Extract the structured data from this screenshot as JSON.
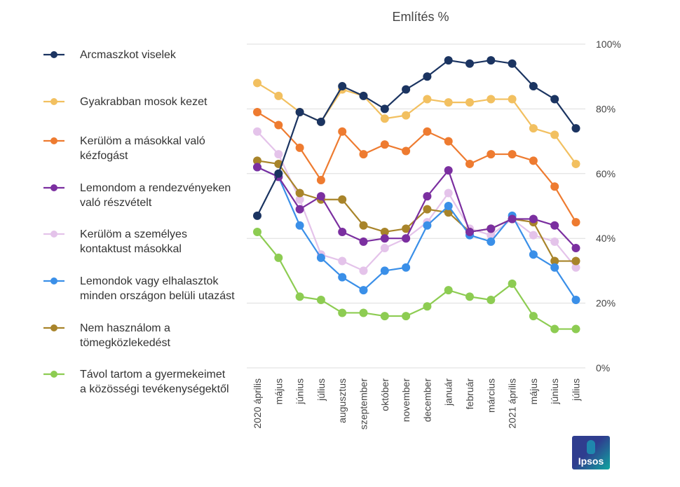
{
  "chart_data": {
    "type": "line",
    "title": "Említés %",
    "categories": [
      "2020 április",
      "május",
      "június",
      "július",
      "augusztus",
      "szeptember",
      "október",
      "november",
      "december",
      "január",
      "február",
      "március",
      "2021 április",
      "május",
      "június",
      "július"
    ],
    "ylim": [
      0,
      100
    ],
    "yticks": [
      "0%",
      "20%",
      "40%",
      "60%",
      "80%",
      "100%"
    ],
    "yaxis_position": "right",
    "grid": true,
    "legend_position": "left",
    "series": [
      {
        "name": "Arcmaszkot viselek",
        "name_lines": [
          "Arcmaszkot viselek"
        ],
        "color": "#1b3461",
        "values": [
          47,
          60,
          79,
          76,
          87,
          84,
          80,
          86,
          90,
          95,
          94,
          95,
          94,
          87,
          83,
          74
        ]
      },
      {
        "name": "Gyakrabban mosok kezet",
        "name_lines": [
          "Gyakrabban mosok kezet"
        ],
        "color": "#f2c060",
        "values": [
          88,
          84,
          79,
          76,
          86,
          84,
          77,
          78,
          83,
          82,
          82,
          83,
          83,
          74,
          72,
          63
        ]
      },
      {
        "name": "Kerülöm a másokkal való kézfogást",
        "name_lines": [
          "Kerülöm a másokkal való",
          "kézfogást"
        ],
        "color": "#ee7b30",
        "values": [
          79,
          75,
          68,
          58,
          73,
          66,
          69,
          67,
          73,
          70,
          63,
          66,
          66,
          64,
          56,
          45
        ]
      },
      {
        "name": "Lemondom a rendezvényeken való részvételt",
        "name_lines": [
          "Lemondom a rendezvényeken",
          "való részvételt"
        ],
        "color": "#7b2fa0",
        "values": [
          62,
          59,
          49,
          53,
          42,
          39,
          40,
          40,
          53,
          61,
          42,
          43,
          46,
          46,
          44,
          37
        ]
      },
      {
        "name": "Kerülöm a személyes kontaktust másokkal",
        "name_lines": [
          "Kerülöm a személyes",
          "kontaktust másokkal"
        ],
        "color": "#e4c3ea",
        "values": [
          73,
          66,
          52,
          35,
          33,
          30,
          37,
          40,
          45,
          54,
          43,
          41,
          46,
          41,
          39,
          31
        ]
      },
      {
        "name": "Lemondok vagy elhalasztok minden országon belüli utazást",
        "name_lines": [
          "Lemondok vagy elhalasztok",
          "minden országon belüli utazást"
        ],
        "color": "#3a8fe8",
        "values": [
          62,
          59,
          44,
          34,
          28,
          24,
          30,
          31,
          44,
          50,
          41,
          39,
          47,
          35,
          31,
          21
        ]
      },
      {
        "name": "Nem használom a tömegközlekedést",
        "name_lines": [
          "Nem használom a",
          "tömegközlekedést"
        ],
        "color": "#a8842a",
        "values": [
          64,
          63,
          54,
          52,
          52,
          44,
          42,
          43,
          49,
          48,
          42,
          43,
          46,
          45,
          33,
          33
        ]
      },
      {
        "name": "Távol tartom a gyermekeimet a közösségi tevékenységektől",
        "name_lines": [
          "Távol tartom a gyermekeimet",
          "a közösségi tevékenységektől"
        ],
        "color": "#8dcc52",
        "values": [
          42,
          34,
          22,
          21,
          17,
          17,
          16,
          16,
          19,
          24,
          22,
          21,
          26,
          16,
          12,
          12
        ]
      }
    ]
  },
  "logo": {
    "text": "Ipsos"
  }
}
